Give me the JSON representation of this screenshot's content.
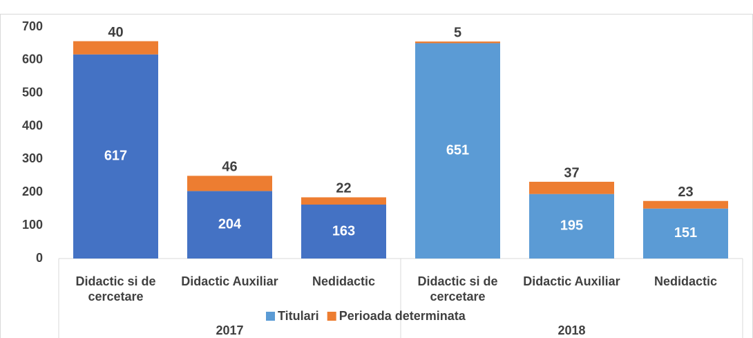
{
  "chart_data": {
    "type": "stacked-bar",
    "groups": [
      {
        "name": "2017",
        "categories": [
          "Didactic si de cercetare",
          "Didactic Auxiliar",
          "Nedidactic"
        ]
      },
      {
        "name": "2018",
        "categories": [
          "Didactic si de cercetare",
          "Didactic Auxiliar",
          "Nedidactic"
        ]
      }
    ],
    "series": [
      {
        "name": "Titulari",
        "color": "#5b9bd5",
        "colors": [
          "#4472c4",
          "#4472c4",
          "#4472c4",
          "#5b9bd5",
          "#5b9bd5",
          "#5b9bd5"
        ],
        "values": [
          617,
          204,
          163,
          651,
          195,
          151
        ]
      },
      {
        "name": "Perioada determinata",
        "color": "#ed7d31",
        "values": [
          40,
          46,
          22,
          5,
          37,
          23
        ]
      }
    ],
    "ylim": [
      0,
      700
    ],
    "yticks": [
      0,
      100,
      200,
      300,
      400,
      500,
      600,
      700
    ],
    "grid": false,
    "legend": "bottom"
  }
}
